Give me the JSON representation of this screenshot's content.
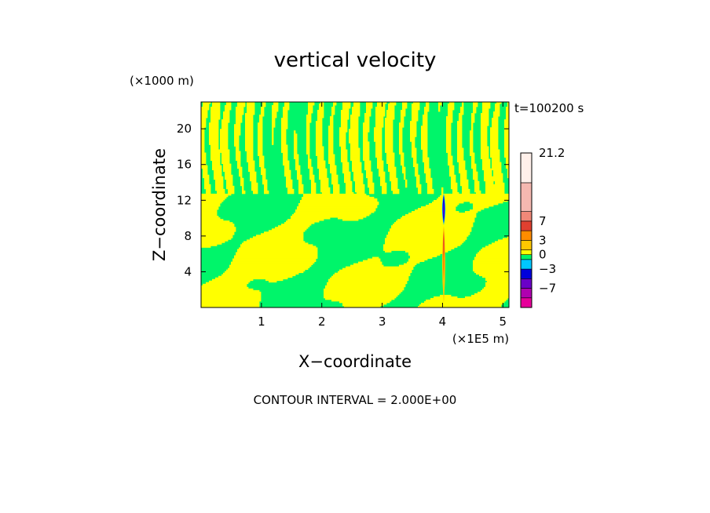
{
  "chart_data": {
    "type": "heatmap",
    "title": "vertical velocity",
    "xlabel": "X−coordinate",
    "ylabel": "Z−coordinate",
    "x_unit": "(×1E5 m)",
    "y_unit": "(×1000 m)",
    "time_label": "t=100200 s",
    "footer": "CONTOUR INTERVAL = 2.000E+00",
    "xlim": [
      0,
      5.1
    ],
    "ylim": [
      0,
      23
    ],
    "x_ticks": [
      "1",
      "2",
      "3",
      "4",
      "5"
    ],
    "y_ticks": [
      "4",
      "8",
      "12",
      "16",
      "20"
    ],
    "colorbar": {
      "ticks": [
        "21.2",
        "7",
        "3",
        "0",
        "−3",
        "−7"
      ],
      "levels": [
        {
          "value": -9,
          "color": "#e6009a"
        },
        {
          "value": -7,
          "color": "#b000b0"
        },
        {
          "value": -5,
          "color": "#6a00c8"
        },
        {
          "value": -3,
          "color": "#0000dc"
        },
        {
          "value": -1,
          "color": "#00c8ff"
        },
        {
          "value": 0,
          "color": "#00f56a"
        },
        {
          "value": 1,
          "color": "#ffff00"
        },
        {
          "value": 3,
          "color": "#ffc800"
        },
        {
          "value": 5,
          "color": "#ff8c00"
        },
        {
          "value": 7,
          "color": "#e04030"
        },
        {
          "value": 9,
          "color": "#f08878"
        },
        {
          "value": 15,
          "color": "#f5b8b0"
        },
        {
          "value": 21.2,
          "color": "#fff0ea"
        }
      ]
    },
    "background_field_color": "#00f56a",
    "positive_field_color": "#ffff00"
  }
}
